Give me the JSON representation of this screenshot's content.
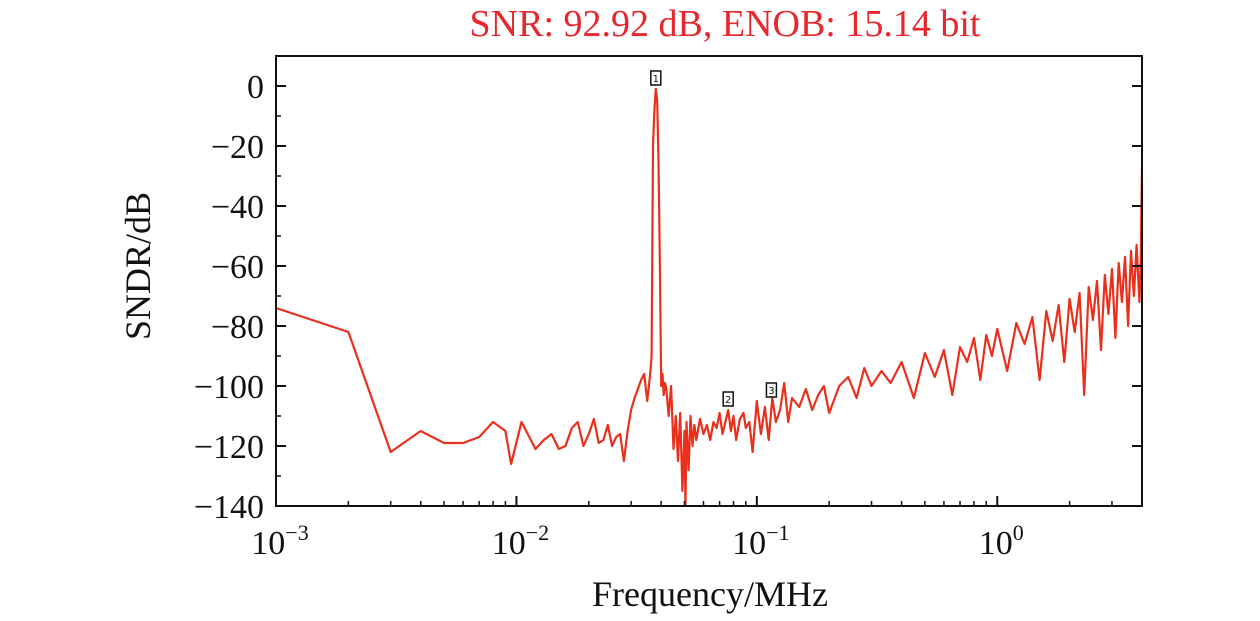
{
  "chart_data": {
    "type": "line",
    "title": "SNR: 92.92 dB, ENOB: 15.14 bit",
    "xlabel": "Frequency/MHz",
    "ylabel": "SNDR/dB",
    "x_scale": "log",
    "xlim": [
      0.001,
      4.0
    ],
    "ylim": [
      -140,
      10
    ],
    "xticks": [
      {
        "value": 0.001,
        "base": "10",
        "exp": "−3"
      },
      {
        "value": 0.01,
        "base": "10",
        "exp": "−2"
      },
      {
        "value": 0.1,
        "base": "10",
        "exp": "−1"
      },
      {
        "value": 1,
        "base": "10",
        "exp": "0"
      }
    ],
    "yticks": [
      {
        "value": 0,
        "label": "0"
      },
      {
        "value": -20,
        "label": "−20"
      },
      {
        "value": -40,
        "label": "−40"
      },
      {
        "value": -60,
        "label": "−60"
      },
      {
        "value": -80,
        "label": "−80"
      },
      {
        "value": -100,
        "label": "−100"
      },
      {
        "value": -120,
        "label": "−120"
      },
      {
        "value": -140,
        "label": "−140"
      }
    ],
    "grid": false,
    "line_color": "#e8301c",
    "title_color": "#e8262d",
    "series": [
      {
        "x": [
          0.001,
          0.002,
          0.003,
          0.004,
          0.005,
          0.006,
          0.007,
          0.008,
          0.009,
          0.0095,
          0.0105,
          0.012,
          0.013,
          0.014,
          0.015,
          0.016,
          0.017,
          0.018,
          0.019,
          0.02,
          0.021,
          0.022,
          0.023,
          0.024,
          0.025,
          0.026,
          0.027,
          0.028,
          0.029,
          0.03,
          0.031,
          0.032,
          0.033,
          0.034,
          0.035,
          0.036,
          0.0365,
          0.037,
          0.0375,
          0.038,
          0.0385,
          0.039,
          0.0395,
          0.04,
          0.0405,
          0.041,
          0.0415,
          0.042,
          0.043,
          0.044,
          0.045,
          0.046,
          0.047,
          0.048,
          0.049,
          0.05,
          0.0505,
          0.051,
          0.052,
          0.053,
          0.054,
          0.055,
          0.056,
          0.058,
          0.06,
          0.062,
          0.064,
          0.066,
          0.068,
          0.07,
          0.072,
          0.074,
          0.076,
          0.078,
          0.08,
          0.082,
          0.085,
          0.088,
          0.09,
          0.093,
          0.096,
          0.1,
          0.104,
          0.108,
          0.112,
          0.116,
          0.12,
          0.125,
          0.13,
          0.135,
          0.14,
          0.15,
          0.16,
          0.17,
          0.18,
          0.19,
          0.2,
          0.22,
          0.24,
          0.26,
          0.28,
          0.3,
          0.33,
          0.36,
          0.4,
          0.45,
          0.5,
          0.55,
          0.6,
          0.65,
          0.7,
          0.75,
          0.8,
          0.85,
          0.9,
          0.95,
          1.0,
          1.1,
          1.2,
          1.3,
          1.4,
          1.5,
          1.6,
          1.7,
          1.8,
          1.9,
          2.0,
          2.1,
          2.2,
          2.3,
          2.4,
          2.5,
          2.6,
          2.7,
          2.8,
          2.9,
          3.0,
          3.1,
          3.2,
          3.3,
          3.4,
          3.5,
          3.6,
          3.7,
          3.8,
          3.9,
          3.95,
          4.0
        ],
        "y": [
          -74,
          -82,
          -122,
          -115,
          -119,
          -119,
          -117,
          -112,
          -115,
          -126,
          -112,
          -121,
          -118,
          -116,
          -121,
          -120,
          -114,
          -112,
          -120,
          -116,
          -111,
          -119,
          -118,
          -113,
          -120,
          -117,
          -116,
          -125,
          -115,
          -108,
          -104,
          -101,
          -98,
          -96,
          -105,
          -96,
          -90,
          -20,
          -8,
          -1,
          -5,
          -25,
          -60,
          -100,
          -96,
          -103,
          -99,
          -101,
          -110,
          -100,
          -121,
          -110,
          -125,
          -109,
          -135,
          -115,
          -140,
          -112,
          -128,
          -110,
          -120,
          -113,
          -118,
          -111,
          -116,
          -113,
          -118,
          -112,
          -114,
          -109,
          -116,
          -112,
          -108,
          -115,
          -110,
          -118,
          -111,
          -109,
          -114,
          -112,
          -122,
          -105,
          -116,
          -107,
          -118,
          -104,
          -112,
          -108,
          -99,
          -112,
          -104,
          -107,
          -101,
          -108,
          -103,
          -100,
          -109,
          -100,
          -97,
          -104,
          -94,
          -100,
          -95,
          -99,
          -92,
          -104,
          -89,
          -97,
          -88,
          -103,
          -87,
          -92,
          -84,
          -98,
          -83,
          -90,
          -81,
          -95,
          -79,
          -86,
          -77,
          -98,
          -75,
          -85,
          -73,
          -92,
          -71,
          -82,
          -69,
          -103,
          -67,
          -78,
          -65,
          -88,
          -63,
          -76,
          -61,
          -84,
          -59,
          -72,
          -57,
          -80,
          -55,
          -70,
          -53,
          -72,
          -60,
          -27
        ]
      }
    ],
    "markers": [
      {
        "label": "1",
        "x": 0.038,
        "y": 0
      },
      {
        "label": "2",
        "x": 0.076,
        "y": -107
      },
      {
        "label": "3",
        "x": 0.115,
        "y": -104
      }
    ]
  }
}
